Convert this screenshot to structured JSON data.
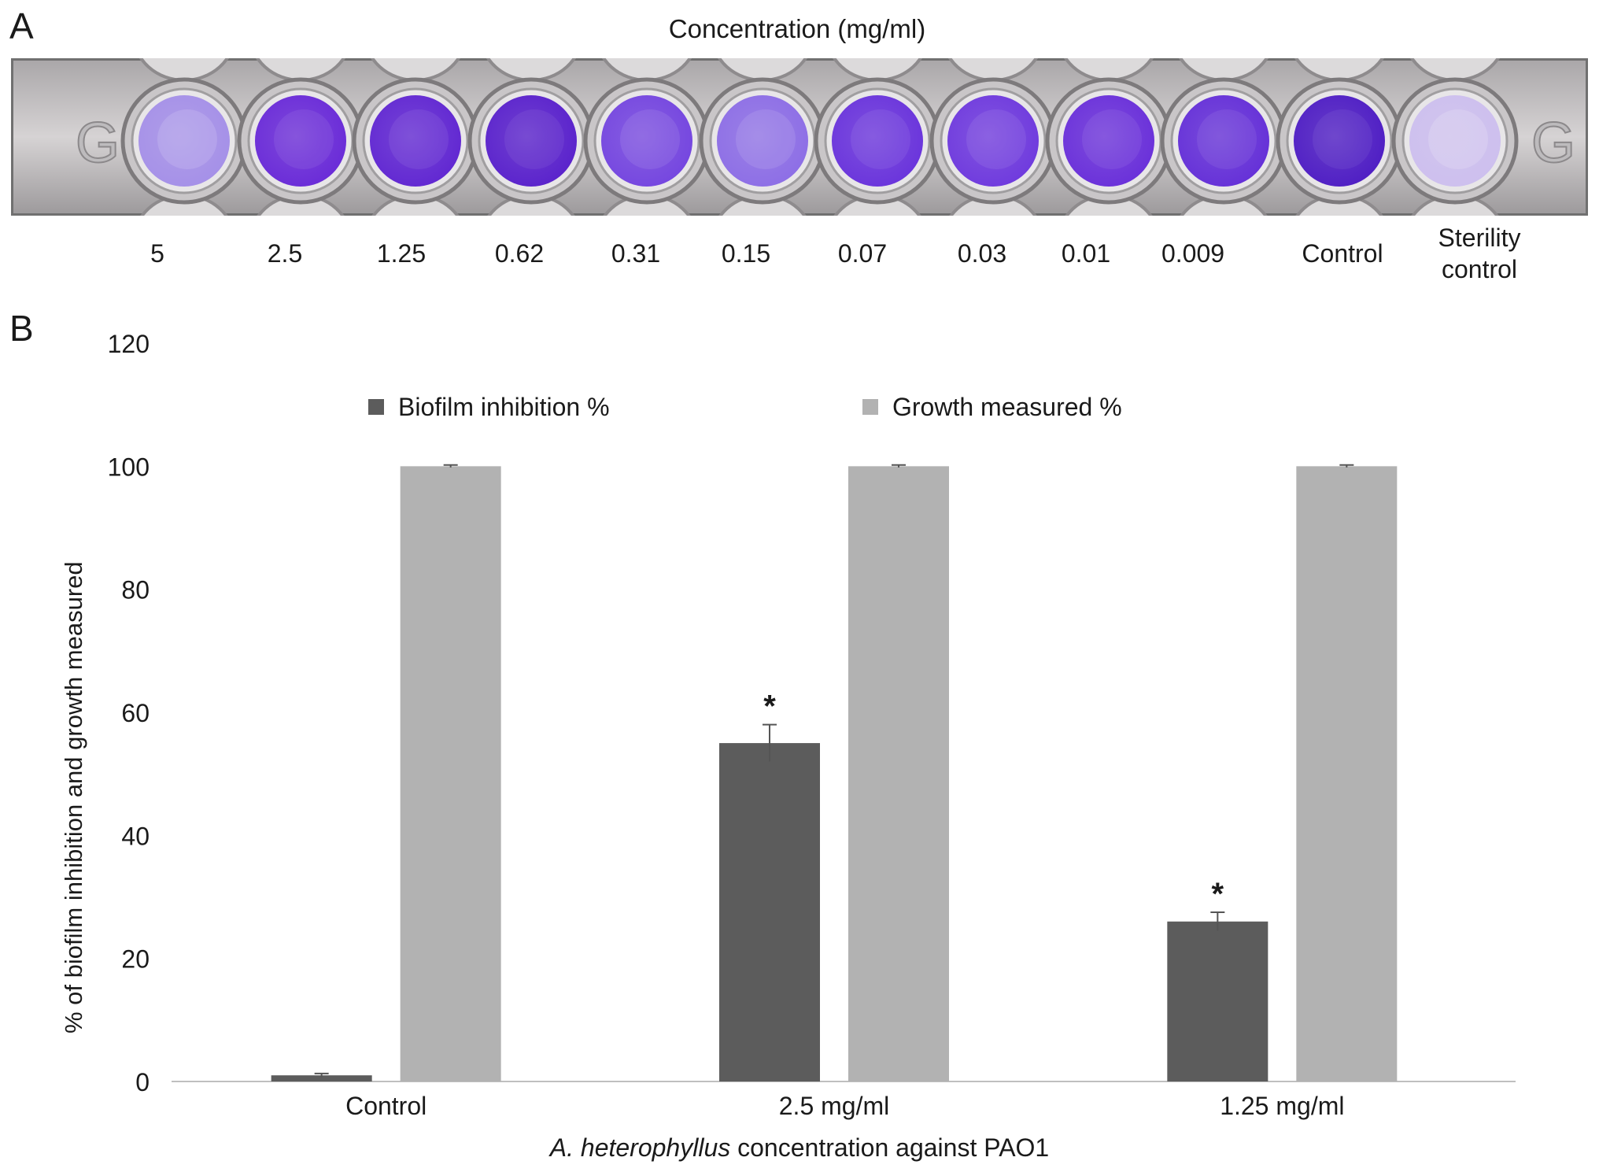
{
  "panel_a": {
    "letter": "A",
    "title": "Concentration (mg/ml)",
    "plate_marks": [
      "G",
      "G"
    ],
    "wells": [
      {
        "label": "5",
        "color": "#a590e8",
        "intensity": 0.35
      },
      {
        "label": "2.5",
        "color": "#6a2bd8",
        "intensity": 0.8
      },
      {
        "label": "1.25",
        "color": "#6127d2",
        "intensity": 0.85
      },
      {
        "label": "0.62",
        "color": "#5a22cc",
        "intensity": 0.9
      },
      {
        "label": "0.31",
        "color": "#7546e0",
        "intensity": 0.7
      },
      {
        "label": "0.15",
        "color": "#8d6ee6",
        "intensity": 0.55
      },
      {
        "label": "0.07",
        "color": "#6a34dc",
        "intensity": 0.8
      },
      {
        "label": "0.03",
        "color": "#6f3ade",
        "intensity": 0.78
      },
      {
        "label": "0.01",
        "color": "#6a30da",
        "intensity": 0.8
      },
      {
        "label": "0.009",
        "color": "#6530d8",
        "intensity": 0.82
      },
      {
        "label": "Control",
        "color": "#4f1ec4",
        "intensity": 0.95
      },
      {
        "label_lines": [
          "Sterility",
          "control"
        ],
        "color": "#cdbfee",
        "intensity": 0.15
      }
    ]
  },
  "panel_b": {
    "letter": "B"
  },
  "chart_data": {
    "type": "bar",
    "title": "",
    "xlabel_italic": "A. heterophyllus",
    "xlabel_rest": " concentration against PAO1",
    "ylabel": "% of biofilm inhibition and growth measured",
    "ylim": [
      0,
      120
    ],
    "yticks": [
      0,
      20,
      40,
      60,
      80,
      100,
      120
    ],
    "categories": [
      "Control",
      "2.5 mg/ml",
      "1.25 mg/ml"
    ],
    "series": [
      {
        "name": "Biofilm inhibition %",
        "color": "#5c5c5c",
        "values": [
          1,
          55,
          26
        ],
        "errors": [
          0.3,
          3,
          1.5
        ],
        "significance": [
          "",
          "*",
          "*"
        ]
      },
      {
        "name": "Growth measured %",
        "color": "#b2b2b2",
        "values": [
          100,
          100,
          100
        ],
        "errors": [
          0.2,
          0.2,
          0.2
        ],
        "significance": [
          "",
          "",
          ""
        ]
      }
    ],
    "legend_position": "top",
    "grid": false
  }
}
